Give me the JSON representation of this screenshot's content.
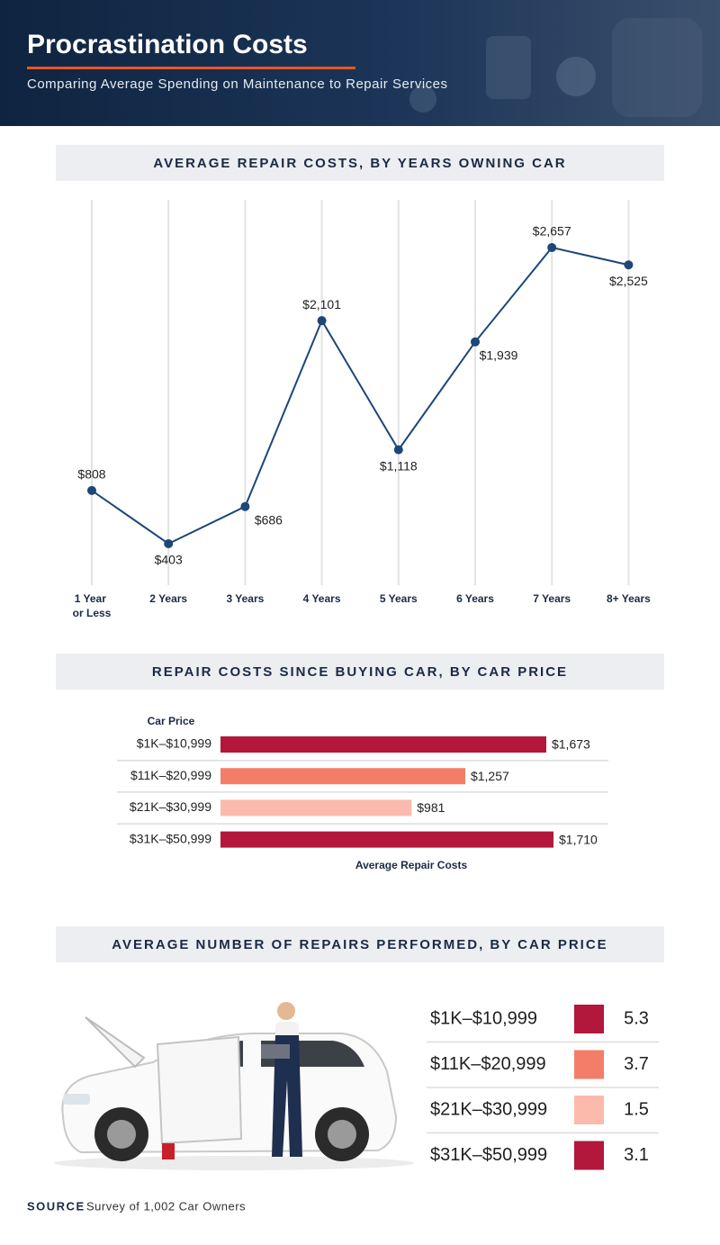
{
  "header": {
    "title": "Procrastination Costs",
    "subtitle": "Comparing Average Spending on Maintenance to Repair Services"
  },
  "chart_data": [
    {
      "type": "line",
      "title": "AVERAGE REPAIR COSTS, BY YEARS OWNING CAR",
      "categories": [
        "1 Year or Less",
        "2 Years",
        "3 Years",
        "4 Years",
        "5 Years",
        "6 Years",
        "7 Years",
        "8+ Years"
      ],
      "values": [
        808,
        403,
        686,
        2101,
        1118,
        1939,
        2657,
        2525
      ],
      "value_labels": [
        "$808",
        "$403",
        "$686",
        "$2,101",
        "$1,118",
        "$1,939",
        "$2,657",
        "$2,525"
      ],
      "color": "#1d4679",
      "grid": true
    },
    {
      "type": "bar",
      "orientation": "horizontal",
      "title": "REPAIR COSTS SINCE BUYING CAR, BY CAR PRICE",
      "y_label": "Car Price",
      "x_label": "Average Repair Costs",
      "categories": [
        "$1K–$10,999",
        "$11K–$20,999",
        "$21K–$30,999",
        "$31K–$50,999"
      ],
      "values": [
        1673,
        1257,
        981,
        1710
      ],
      "value_labels": [
        "$1,673",
        "$1,257",
        "$981",
        "$1,710"
      ],
      "colors": [
        "#b3173c",
        "#f47d69",
        "#fcbaad",
        "#b3173c"
      ]
    },
    {
      "type": "table",
      "title": "AVERAGE NUMBER OF REPAIRS PERFORMED, BY CAR PRICE",
      "categories": [
        "$1K–$10,999",
        "$11K–$20,999",
        "$21K–$30,999",
        "$31K–$50,999"
      ],
      "values": [
        5.3,
        3.7,
        1.5,
        3.1
      ],
      "colors": [
        "#b3173c",
        "#f47d69",
        "#fcbaad",
        "#b3173c"
      ]
    }
  ],
  "source": {
    "label": "SOURCE",
    "text": "Survey of 1,002 Car Owners"
  }
}
